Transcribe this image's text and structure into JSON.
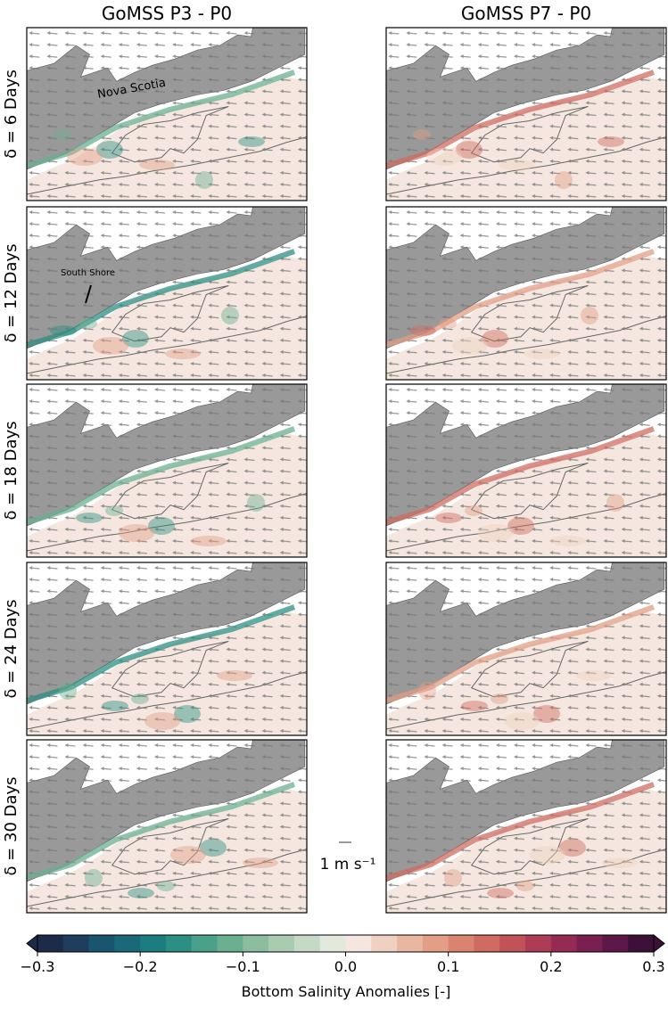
{
  "columns": [
    "GoMSS P3 - P0",
    "GoMSS P7 - P0"
  ],
  "rows": [
    "δ = 6 Days",
    "δ = 12 Days",
    "δ = 18 Days",
    "δ = 24 Days",
    "δ = 30 Days"
  ],
  "annotations": {
    "nova_scotia": "Nova Scotia",
    "south_shore": "South Shore"
  },
  "scale_arrow": "1 m s⁻¹",
  "colorbar": {
    "label": "Bottom Salinity Anomalies [-]",
    "lim": [
      -0.3,
      0.3
    ],
    "extend": "both",
    "ticks": [
      {
        "value": -0.3,
        "label": "−0.3"
      },
      {
        "value": -0.2,
        "label": "−0.2"
      },
      {
        "value": -0.1,
        "label": "−0.1"
      },
      {
        "value": 0,
        "label": "0.0"
      },
      0.1,
      0.2,
      0.3
    ],
    "colors": [
      "#1b2b48",
      "#1f3e5e",
      "#1a5570",
      "#19697a",
      "#1c7d80",
      "#2d8f83",
      "#4aa088",
      "#6aaf90",
      "#8bbd9e",
      "#a9cbb0",
      "#c6d9c5",
      "#e2e9dd",
      "#f5e7df",
      "#efd0c1",
      "#e8b7a2",
      "#e29e86",
      "#da846f",
      "#cf6b60",
      "#c05357",
      "#ad3d55",
      "#952b55",
      "#7a1f52",
      "#5d1748",
      "#3d1038"
    ]
  }
}
